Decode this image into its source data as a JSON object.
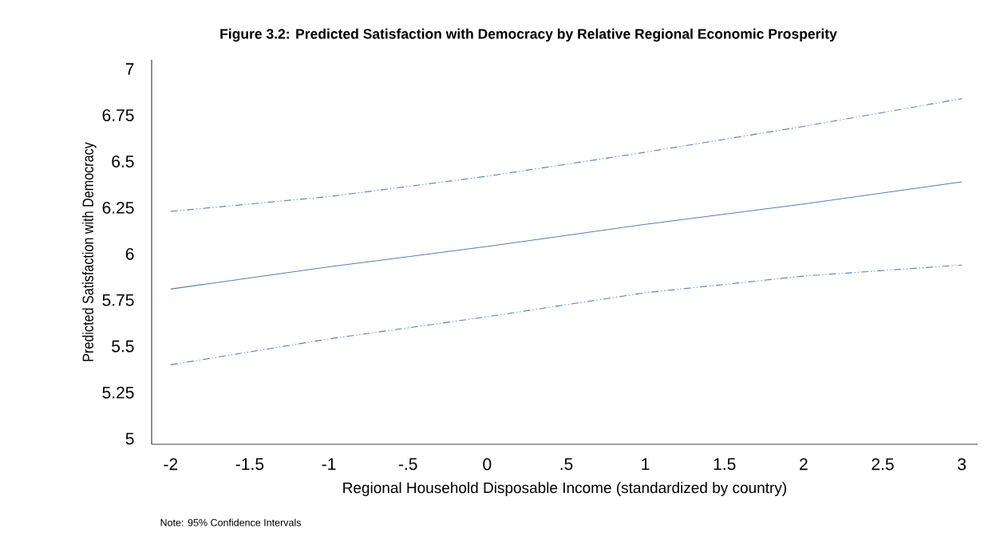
{
  "chart_data": {
    "type": "line",
    "title": "Figure 3.2: Predicted Satisfaction with Democracy by Relative Regional Economic Prosperity",
    "xlabel": "Regional Household Disposable Income (standardized by country)",
    "ylabel": "Predicted Satisfaction with Democracy",
    "annotations": [
      "Note: 95% Confidence Intervals"
    ],
    "x": [
      -2,
      -1,
      0,
      1,
      2,
      3
    ],
    "series": [
      {
        "color": "#4f81bd",
        "line_style": "dashed",
        "values": [
          6.23,
          6.31,
          6.42,
          6.55,
          6.69,
          6.84
        ]
      },
      {
        "color": "#4f81bd",
        "line_style": "solid",
        "values": [
          5.81,
          5.93,
          6.04,
          6.16,
          6.27,
          6.39
        ]
      },
      {
        "color": "#4f81bd",
        "line_style": "dashed",
        "values": [
          5.4,
          5.54,
          5.66,
          5.79,
          5.88,
          5.94
        ]
      }
    ],
    "xlim": [
      -2.12,
      3.1
    ],
    "ylim": [
      4.97,
      7.05
    ],
    "xticks": [
      -2,
      -1.5,
      -1,
      {
        "value": -0.5,
        "label": "-.5"
      },
      0,
      {
        "value": 0.5,
        "label": ".5"
      },
      1,
      1.5,
      2,
      2.5,
      3
    ],
    "yticks": [
      5,
      5.25,
      5.5,
      5.75,
      6,
      6.25,
      6.5,
      6.75,
      7
    ],
    "grid": false
  }
}
